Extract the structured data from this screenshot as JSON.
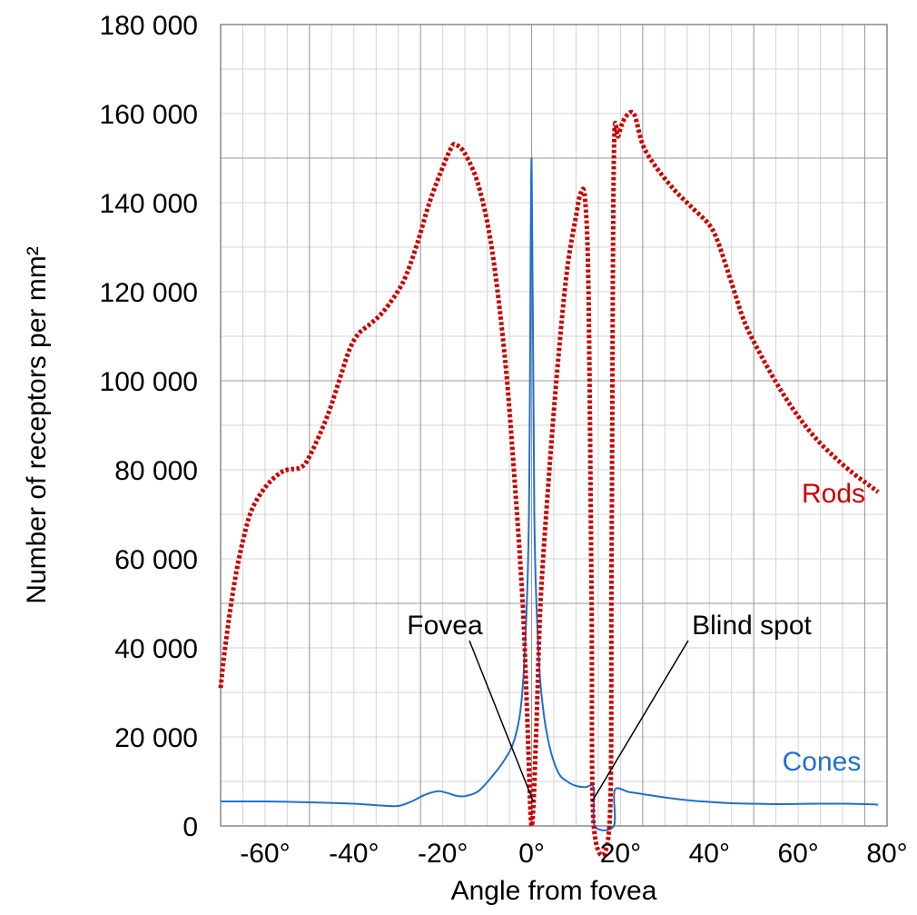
{
  "chart_data": {
    "type": "line",
    "xlabel": "Angle from fovea",
    "ylabel": "Number of receptors per mm²",
    "xlim": [
      -70,
      80
    ],
    "ylim": [
      0,
      180000
    ],
    "x_ticks": [
      -60,
      -40,
      -20,
      0,
      20,
      40,
      60,
      80
    ],
    "x_tick_labels": [
      "-60°",
      "-40°",
      "-20°",
      "0°",
      "20°",
      "40°",
      "60°",
      "80°"
    ],
    "y_ticks": [
      0,
      20000,
      40000,
      60000,
      80000,
      100000,
      120000,
      140000,
      160000,
      180000
    ],
    "y_tick_labels": [
      "0",
      "20 000",
      "40 000",
      "60 000",
      "80 000",
      "100 000",
      "120 000",
      "140 000",
      "160 000",
      "180 000"
    ],
    "grid": true,
    "series": [
      {
        "name": "Rods",
        "color": "#cc0000",
        "style": "dotted",
        "points": [
          [
            -70,
            31000
          ],
          [
            -69,
            40000
          ],
          [
            -67,
            54000
          ],
          [
            -65,
            64000
          ],
          [
            -63,
            71000
          ],
          [
            -60,
            76000
          ],
          [
            -57,
            79000
          ],
          [
            -55,
            80000
          ],
          [
            -52,
            80500
          ],
          [
            -50,
            83000
          ],
          [
            -46,
            92000
          ],
          [
            -43,
            101000
          ],
          [
            -41,
            107000
          ],
          [
            -39,
            110500
          ],
          [
            -36,
            113000
          ],
          [
            -33,
            116000
          ],
          [
            -29,
            122000
          ],
          [
            -26,
            130000
          ],
          [
            -23,
            140000
          ],
          [
            -20,
            148000
          ],
          [
            -18,
            152500
          ],
          [
            -17,
            153000
          ],
          [
            -15,
            151000
          ],
          [
            -12,
            144000
          ],
          [
            -9,
            130000
          ],
          [
            -6,
            105000
          ],
          [
            -4,
            80000
          ],
          [
            -2,
            50000
          ],
          [
            -1,
            25000
          ],
          [
            0,
            0
          ],
          [
            1,
            20000
          ],
          [
            2,
            50000
          ],
          [
            4,
            80000
          ],
          [
            6,
            105000
          ],
          [
            8,
            125000
          ],
          [
            10,
            137000
          ],
          [
            11,
            142000
          ],
          [
            12,
            141000
          ],
          [
            12.8,
            120000
          ],
          [
            13.5,
            50000
          ],
          [
            14,
            0
          ],
          [
            17.5,
            0
          ],
          [
            18,
            60000
          ],
          [
            18.5,
            150000
          ],
          [
            19.5,
            155000
          ],
          [
            21,
            159000
          ],
          [
            23,
            160000
          ],
          [
            25,
            153000
          ],
          [
            28,
            148000
          ],
          [
            32,
            143000
          ],
          [
            36,
            139000
          ],
          [
            40,
            135000
          ],
          [
            42,
            131000
          ],
          [
            45,
            122000
          ],
          [
            48,
            113000
          ],
          [
            52,
            105000
          ],
          [
            56,
            98000
          ],
          [
            60,
            92000
          ],
          [
            64,
            87000
          ],
          [
            68,
            83000
          ],
          [
            72,
            79500
          ],
          [
            76,
            76500
          ],
          [
            78,
            75000
          ]
        ]
      },
      {
        "name": "Cones",
        "color": "#1f6fd1",
        "style": "solid",
        "points": [
          [
            -70,
            5500
          ],
          [
            -60,
            5500
          ],
          [
            -50,
            5300
          ],
          [
            -40,
            5000
          ],
          [
            -34,
            4600
          ],
          [
            -30,
            4500
          ],
          [
            -27,
            5500
          ],
          [
            -24,
            7000
          ],
          [
            -21,
            7800
          ],
          [
            -19,
            7400
          ],
          [
            -17,
            6800
          ],
          [
            -15,
            6700
          ],
          [
            -12,
            7800
          ],
          [
            -9,
            11000
          ],
          [
            -6,
            15000
          ],
          [
            -4,
            19000
          ],
          [
            -2.5,
            26000
          ],
          [
            -1.5,
            40000
          ],
          [
            -0.6,
            70000
          ],
          [
            0,
            150000
          ],
          [
            0.6,
            70000
          ],
          [
            1.5,
            40000
          ],
          [
            2.5,
            27000
          ],
          [
            4,
            18000
          ],
          [
            6,
            12000
          ],
          [
            8,
            10000
          ],
          [
            10,
            9000
          ],
          [
            12,
            8700
          ],
          [
            14,
            8500
          ],
          [
            14.2,
            0
          ],
          [
            18.5,
            0
          ],
          [
            18.7,
            8000
          ],
          [
            22,
            7600
          ],
          [
            26,
            7000
          ],
          [
            30,
            6400
          ],
          [
            35,
            5800
          ],
          [
            40,
            5400
          ],
          [
            45,
            5100
          ],
          [
            50,
            5000
          ],
          [
            55,
            4900
          ],
          [
            60,
            4950
          ],
          [
            65,
            5000
          ],
          [
            70,
            5000
          ],
          [
            75,
            4900
          ],
          [
            78,
            4800
          ]
        ]
      }
    ],
    "annotations": [
      {
        "text": "Fovea",
        "target_x": 0,
        "target_y": 5000
      },
      {
        "text": "Blind spot",
        "target_x": 16,
        "target_y": 5000
      }
    ]
  }
}
